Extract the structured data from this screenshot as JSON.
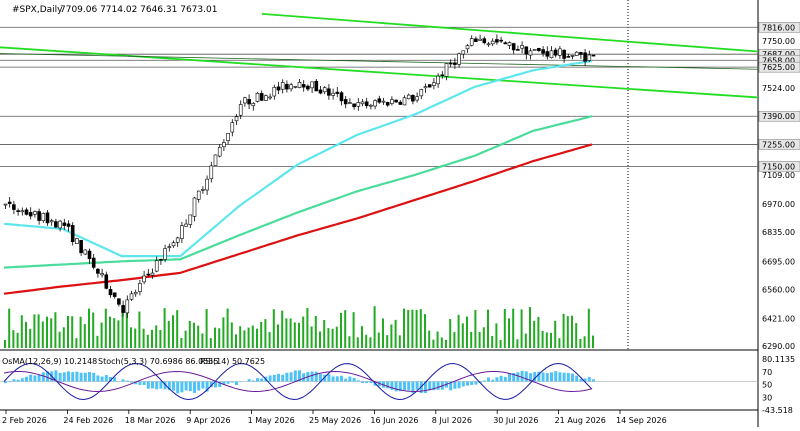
{
  "header": {
    "symbol": "#SPX,Daily",
    "ohlc": "7709.06 7714.02 7646.31 7673.01"
  },
  "indicator_labels": {
    "osma": "OsMA(12,26,9) 10.2148",
    "stoch": "Stoch(5,3,3) 70.6986 86.0555",
    "rsi": "RSI(14) 50.7625"
  },
  "colors": {
    "candle": "#000000",
    "ema_fast": "#5ee6ee",
    "ema_mid": "#49dc9a",
    "ema_slow": "#dd1111",
    "trend_line": "#22dd22",
    "level_line": "#555555",
    "volume": "#22aa22",
    "osma_hist": "#4fc3f7",
    "stoch_main": "#1a1aa6",
    "stoch_signal": "#c0392b",
    "rsi": "#6a1b9a"
  },
  "chart_data": {
    "type": "candlestick",
    "title": "#SPX,Daily",
    "x_tick_labels": [
      "2 Feb 2026",
      "24 Feb 2026",
      "18 Mar 2026",
      "9 Apr 2026",
      "1 May 2026",
      "25 May 2026",
      "16 Jun 2026",
      "8 Jul 2026",
      "30 Jul 2026",
      "21 Aug 2026",
      "14 Sep 2026"
    ],
    "y_tick_labels": [
      "7816.00",
      "7750.00",
      "7687.00",
      "7658.00",
      "7625.00",
      "7524.00",
      "7390.00",
      "7255.00",
      "7150.00",
      "7109.00",
      "6970.00",
      "6835.00",
      "6695.00",
      "6560.00",
      "6421.00",
      "6290.00"
    ],
    "ylim": [
      6280,
      7870
    ],
    "highlighted_levels": [
      7816,
      7687,
      7658,
      7625,
      7390,
      7255,
      7150
    ],
    "series": [
      {
        "name": "Price (close)",
        "x": [
          "2 Feb 2026",
          "24 Feb 2026",
          "18 Mar 2026",
          "9 Apr 2026",
          "1 May 2026",
          "25 May 2026",
          "16 Jun 2026",
          "8 Jul 2026",
          "30 Jul 2026",
          "21 Aug 2026",
          "14 Sep 2026"
        ],
        "values": [
          6960,
          6870,
          6470,
          6850,
          7450,
          7560,
          7440,
          7480,
          7760,
          7700,
          7673
        ]
      },
      {
        "x": [
          "2 Feb 2026",
          "24 Feb 2026",
          "18 Mar 2026",
          "9 Apr 2026",
          "1 May 2026",
          "25 May 2026",
          "16 Jun 2026",
          "8 Jul 2026",
          "30 Jul 2026",
          "21 Aug 2026",
          "14 Sep 2026"
        ],
        "values": [
          6875,
          6850,
          6720,
          6720,
          6960,
          7160,
          7300,
          7400,
          7530,
          7610,
          7655
        ]
      },
      {
        "x": [
          "2 Feb 2026",
          "24 Feb 2026",
          "18 Mar 2026",
          "9 Apr 2026",
          "1 May 2026",
          "25 May 2026",
          "16 Jun 2026",
          "8 Jul 2026",
          "30 Jul 2026",
          "21 Aug 2026",
          "14 Sep 2026"
        ],
        "values": [
          6665,
          6680,
          6695,
          6705,
          6820,
          6930,
          7030,
          7110,
          7200,
          7320,
          7390
        ]
      },
      {
        "x": [
          "2 Feb 2026",
          "24 Feb 2026",
          "18 Mar 2026",
          "9 Apr 2026",
          "1 May 2026",
          "25 May 2026",
          "16 Jun 2026",
          "8 Jul 2026",
          "30 Jul 2026",
          "21 Aug 2026",
          "14 Sep 2026"
        ],
        "values": [
          6540,
          6575,
          6605,
          6640,
          6730,
          6820,
          6900,
          6990,
          7080,
          7175,
          7255
        ]
      }
    ],
    "indicators": {
      "osma": {
        "params": "12,26,9",
        "value": 10.2148
      },
      "stoch": {
        "params": "5,3,3",
        "main": 70.6986,
        "signal": 86.0555
      },
      "rsi": {
        "params": "14",
        "value": 50.7625
      },
      "sub_axis_labels": [
        "80.1135",
        "70",
        "50",
        "30",
        "-43.518"
      ]
    }
  }
}
